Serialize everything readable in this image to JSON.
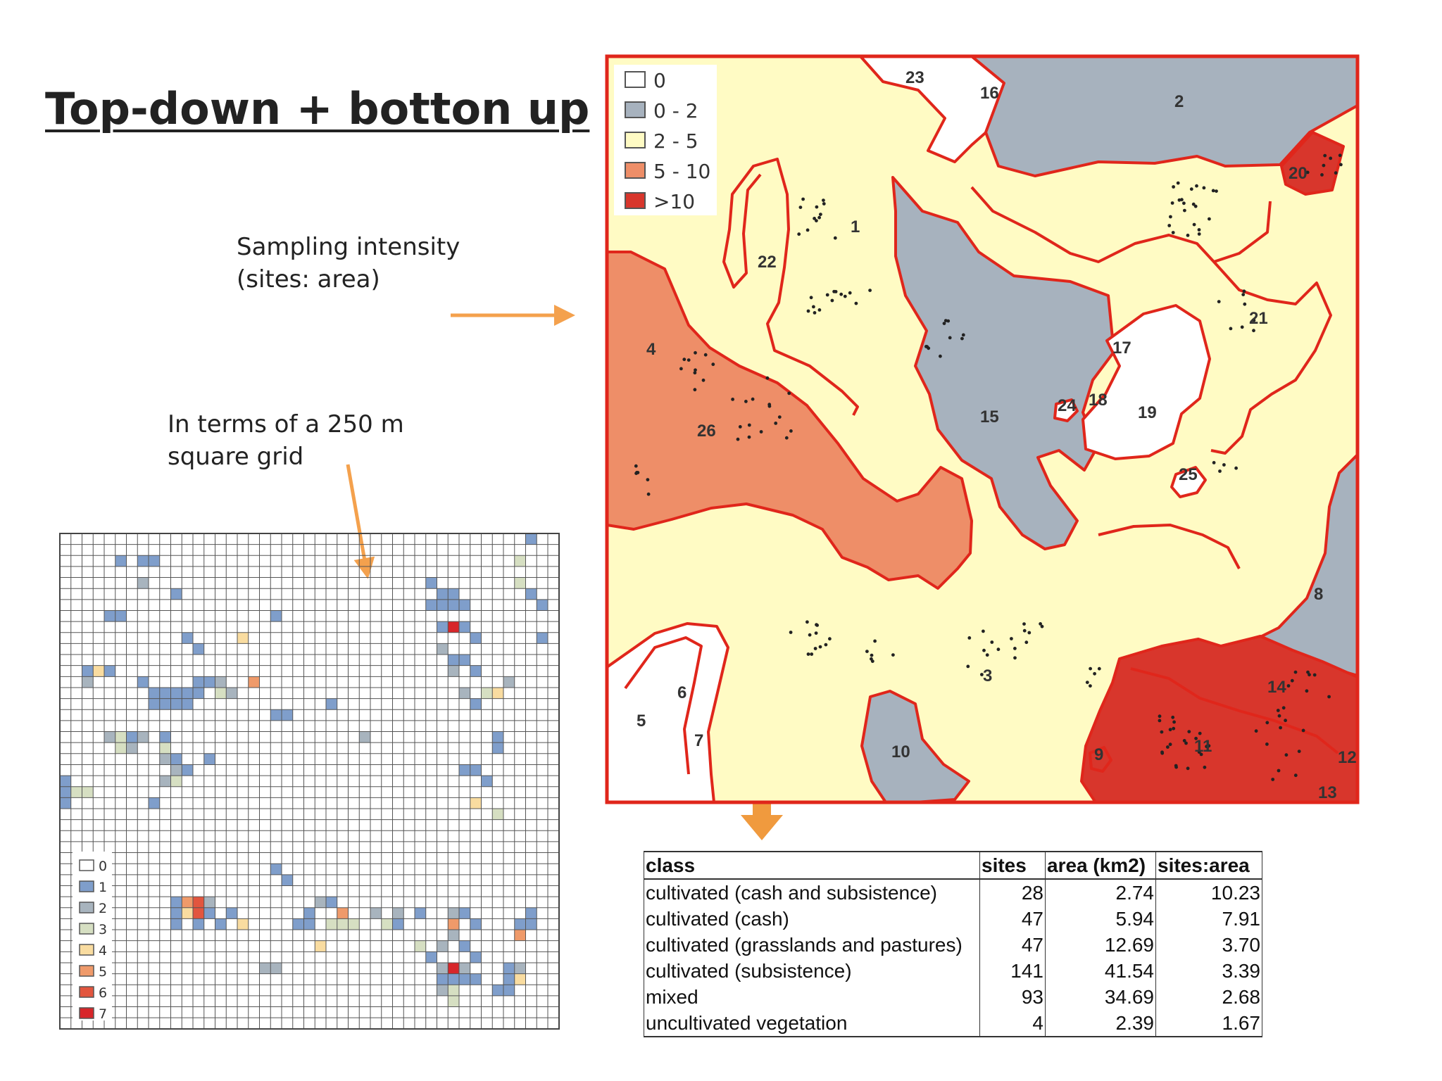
{
  "title": "Top-down + botton up",
  "labels": {
    "sampling_line1": "Sampling intensity",
    "sampling_line2": "(sites: area)",
    "grid_line1": "In terms of a 250 m",
    "grid_line2": "square grid"
  },
  "colors": {
    "arrow": "#F4A14D",
    "border_red": "#E0261B",
    "zone_white": "#FFFFFF",
    "zone_grey": "#A7B2BE",
    "zone_cream": "#FFFBC4",
    "zone_salmon": "#EE8E68",
    "zone_red": "#D8362C",
    "grid_colors": [
      "#FFFFFF",
      "#7F9ECB",
      "#A8B4BE",
      "#D6DFC2",
      "#F9DCA0",
      "#EF9A6A",
      "#E2553E",
      "#D7262A"
    ]
  },
  "map": {
    "legend": [
      {
        "label": "0",
        "color": "#FFFFFF"
      },
      {
        "label": "0 - 2",
        "color": "#A7B2BE"
      },
      {
        "label": "2 - 5",
        "color": "#FFFBC4"
      },
      {
        "label": "5 - 10",
        "color": "#EE8E68"
      },
      {
        "label": ">10",
        "color": "#D8362C"
      }
    ],
    "zone_labels": [
      "1",
      "2",
      "3",
      "4",
      "5",
      "6",
      "7",
      "8",
      "9",
      "10",
      "11",
      "12",
      "13",
      "14",
      "15",
      "16",
      "17",
      "18",
      "19",
      "20",
      "21",
      "22",
      "23",
      "24",
      "25",
      "26"
    ]
  },
  "grid": {
    "legend": [
      "0",
      "1",
      "2",
      "3",
      "4",
      "5",
      "6",
      "7"
    ]
  },
  "table": {
    "headers": [
      "class",
      "sites",
      "area (km2)",
      "sites:area"
    ],
    "rows": [
      [
        "cultivated (cash and subsistence)",
        "28",
        "2.74",
        "10.23"
      ],
      [
        "cultivated (cash)",
        "47",
        "5.94",
        "7.91"
      ],
      [
        "cultivated (grasslands and pastures)",
        "47",
        "12.69",
        "3.70"
      ],
      [
        "cultivated (subsistence)",
        "141",
        "41.54",
        "3.39"
      ],
      [
        "mixed",
        "93",
        "34.69",
        "2.68"
      ],
      [
        "uncultivated vegetation",
        "4",
        "2.39",
        "1.67"
      ]
    ]
  }
}
